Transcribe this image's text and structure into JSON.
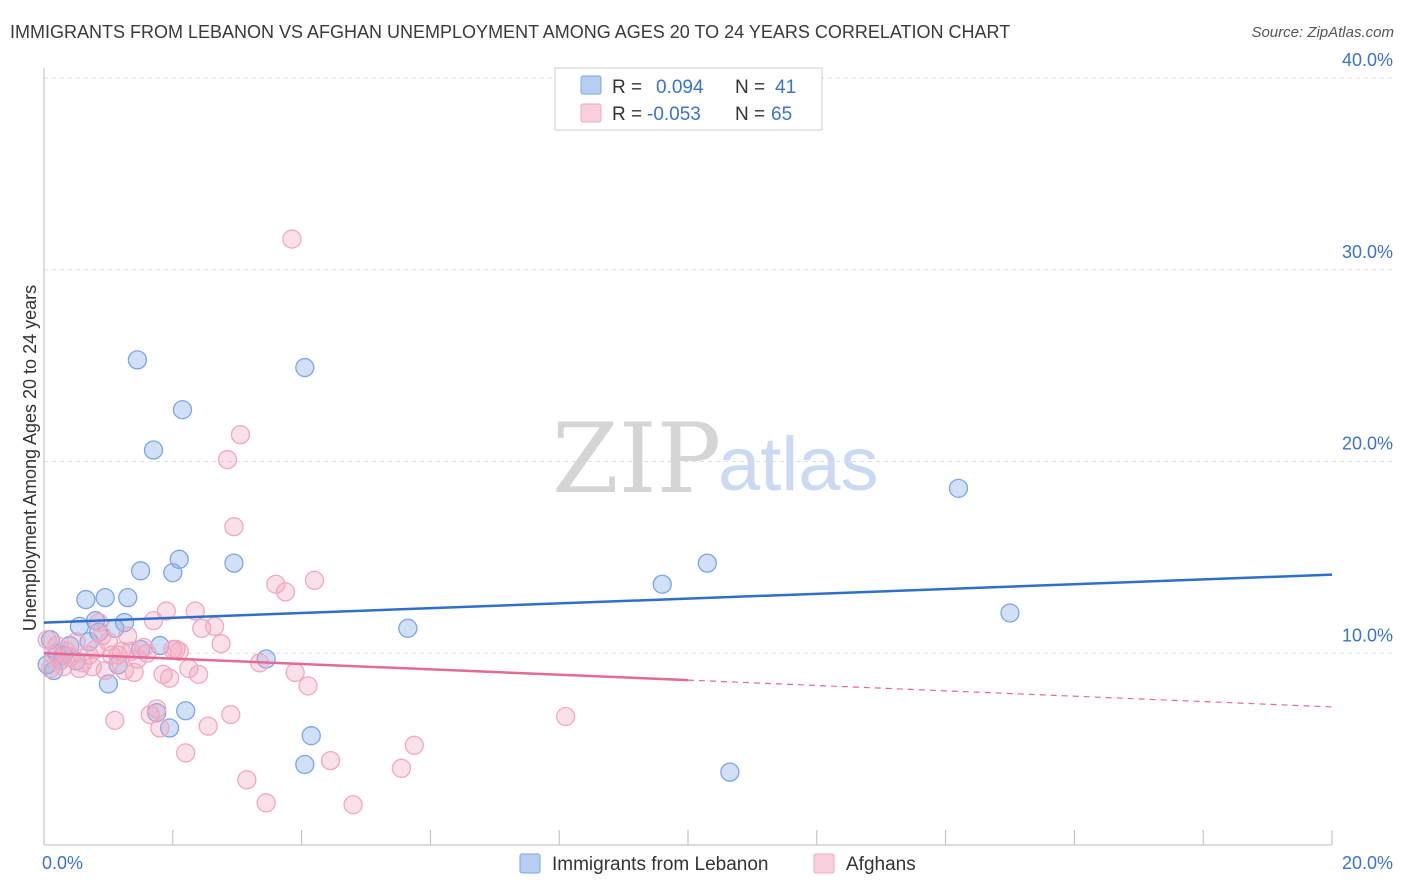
{
  "header": {
    "title": "IMMIGRANTS FROM LEBANON VS AFGHAN UNEMPLOYMENT AMONG AGES 20 TO 24 YEARS CORRELATION CHART",
    "source": "Source: ZipAtlas.com"
  },
  "watermark": {
    "zip": "ZIP",
    "atlas": "atlas"
  },
  "chart_data": {
    "type": "scatter",
    "title": "IMMIGRANTS FROM LEBANON VS AFGHAN UNEMPLOYMENT AMONG AGES 20 TO 24 YEARS CORRELATION CHART",
    "xlabel": "",
    "ylabel": "Unemployment Among Ages 20 to 24 years",
    "xlim": [
      0,
      20
    ],
    "ylim": [
      0,
      40
    ],
    "x_tick_labels": {
      "left": "0.0%",
      "right": "20.0%"
    },
    "y_ticks": [
      {
        "value": 10,
        "label": "10.0%"
      },
      {
        "value": 20,
        "label": "20.0%"
      },
      {
        "value": 30,
        "label": "30.0%"
      },
      {
        "value": 40,
        "label": "40.0%"
      }
    ],
    "grid": true,
    "legend_position": "top-center",
    "series": [
      {
        "name": "Immigrants from Lebanon",
        "color": "#7aa6e6",
        "line_color": "#2f6fcb",
        "r_label": "R =",
        "r_value": "0.094",
        "n_label": "N =",
        "n_value": "41",
        "trend": {
          "x": [
            0,
            20
          ],
          "y": [
            11.6,
            14.1
          ],
          "dashed_from": null
        },
        "points": [
          [
            0.05,
            9.4
          ],
          [
            0.1,
            10.7
          ],
          [
            0.15,
            9.1
          ],
          [
            0.2,
            10.0
          ],
          [
            0.25,
            9.6
          ],
          [
            0.3,
            9.9
          ],
          [
            0.4,
            10.4
          ],
          [
            0.5,
            9.6
          ],
          [
            0.55,
            11.4
          ],
          [
            0.65,
            12.8
          ],
          [
            0.7,
            10.6
          ],
          [
            0.8,
            11.7
          ],
          [
            0.85,
            11.1
          ],
          [
            0.95,
            12.9
          ],
          [
            1.0,
            8.4
          ],
          [
            1.1,
            11.3
          ],
          [
            1.15,
            9.4
          ],
          [
            1.25,
            11.6
          ],
          [
            1.3,
            12.9
          ],
          [
            1.45,
            25.3
          ],
          [
            1.5,
            14.3
          ],
          [
            1.5,
            10.2
          ],
          [
            1.7,
            20.6
          ],
          [
            1.75,
            6.9
          ],
          [
            1.8,
            10.4
          ],
          [
            1.95,
            6.1
          ],
          [
            2.0,
            14.2
          ],
          [
            2.1,
            14.9
          ],
          [
            2.15,
            22.7
          ],
          [
            2.2,
            7.0
          ],
          [
            2.95,
            14.7
          ],
          [
            3.45,
            9.7
          ],
          [
            4.05,
            24.9
          ],
          [
            4.05,
            4.2
          ],
          [
            4.15,
            5.7
          ],
          [
            5.65,
            11.3
          ],
          [
            9.6,
            13.6
          ],
          [
            10.3,
            14.7
          ],
          [
            10.65,
            3.8
          ],
          [
            14.2,
            18.6
          ],
          [
            15.0,
            12.1
          ]
        ]
      },
      {
        "name": "Afghans",
        "color": "#f2a7c0",
        "line_color": "#e36a96",
        "r_label": "R =",
        "r_value": "-0.053",
        "n_label": "N =",
        "n_value": "65",
        "trend": {
          "x": [
            0,
            20
          ],
          "y": [
            10.0,
            7.2
          ],
          "dashed_from": 10.0
        },
        "points": [
          [
            0.05,
            10.7
          ],
          [
            0.1,
            9.2
          ],
          [
            0.15,
            9.9
          ],
          [
            0.2,
            10.4
          ],
          [
            0.25,
            9.6
          ],
          [
            0.3,
            9.3
          ],
          [
            0.35,
            10.1
          ],
          [
            0.4,
            9.8
          ],
          [
            0.5,
            10.6
          ],
          [
            0.55,
            9.2
          ],
          [
            0.6,
            9.5
          ],
          [
            0.7,
            9.9
          ],
          [
            0.75,
            9.3
          ],
          [
            0.8,
            10.2
          ],
          [
            0.85,
            11.6
          ],
          [
            0.9,
            10.9
          ],
          [
            0.95,
            9.1
          ],
          [
            1.0,
            10.6
          ],
          [
            1.05,
            9.9
          ],
          [
            1.1,
            6.5
          ],
          [
            1.15,
            9.9
          ],
          [
            1.2,
            10.1
          ],
          [
            1.3,
            10.9
          ],
          [
            1.35,
            10.1
          ],
          [
            1.4,
            9.0
          ],
          [
            1.45,
            9.7
          ],
          [
            1.55,
            10.3
          ],
          [
            1.6,
            10.0
          ],
          [
            1.65,
            6.8
          ],
          [
            1.7,
            11.7
          ],
          [
            1.75,
            7.1
          ],
          [
            1.8,
            6.1
          ],
          [
            1.85,
            8.9
          ],
          [
            1.9,
            12.2
          ],
          [
            1.95,
            8.7
          ],
          [
            2.0,
            10.2
          ],
          [
            2.05,
            10.2
          ],
          [
            2.1,
            10.1
          ],
          [
            2.2,
            4.8
          ],
          [
            2.25,
            9.2
          ],
          [
            2.35,
            12.2
          ],
          [
            2.4,
            8.9
          ],
          [
            2.45,
            11.3
          ],
          [
            2.55,
            6.2
          ],
          [
            2.65,
            11.4
          ],
          [
            2.75,
            10.5
          ],
          [
            2.85,
            20.1
          ],
          [
            2.9,
            6.8
          ],
          [
            2.95,
            16.6
          ],
          [
            3.05,
            21.4
          ],
          [
            3.15,
            3.4
          ],
          [
            3.35,
            9.5
          ],
          [
            3.45,
            2.2
          ],
          [
            3.6,
            13.6
          ],
          [
            3.75,
            13.2
          ],
          [
            3.85,
            31.6
          ],
          [
            3.9,
            9.0
          ],
          [
            4.1,
            8.3
          ],
          [
            4.2,
            13.8
          ],
          [
            4.45,
            4.4
          ],
          [
            4.8,
            2.1
          ],
          [
            5.55,
            4.0
          ],
          [
            5.75,
            5.2
          ],
          [
            8.1,
            6.7
          ],
          [
            1.25,
            9.1
          ]
        ]
      }
    ]
  }
}
